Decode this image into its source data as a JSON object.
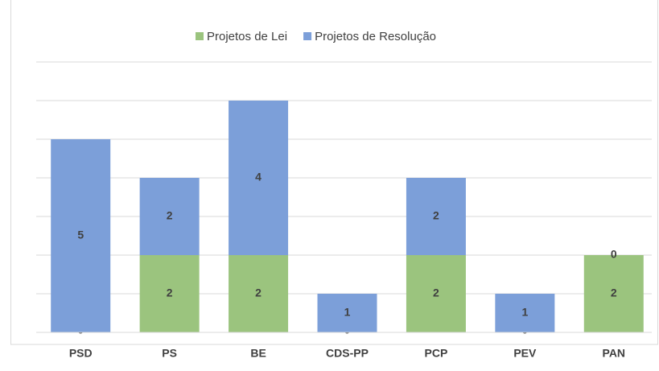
{
  "chart_data": {
    "type": "stacked_bar",
    "categories": [
      "PSD",
      "PS",
      "BE",
      "CDS-PP",
      "PCP",
      "PEV",
      "PAN"
    ],
    "series": [
      {
        "name": "Projetos de Lei",
        "color": "#9bc47e",
        "values": [
          0,
          2,
          2,
          0,
          2,
          0,
          2
        ]
      },
      {
        "name": "Projetos de Resolução",
        "color": "#7c9fd9",
        "values": [
          5,
          2,
          4,
          1,
          2,
          1,
          0
        ]
      }
    ],
    "ylim": [
      0,
      7
    ],
    "yticks": [
      0,
      1,
      2,
      3,
      4,
      5,
      6,
      7
    ],
    "grid": true,
    "legend": "top"
  }
}
